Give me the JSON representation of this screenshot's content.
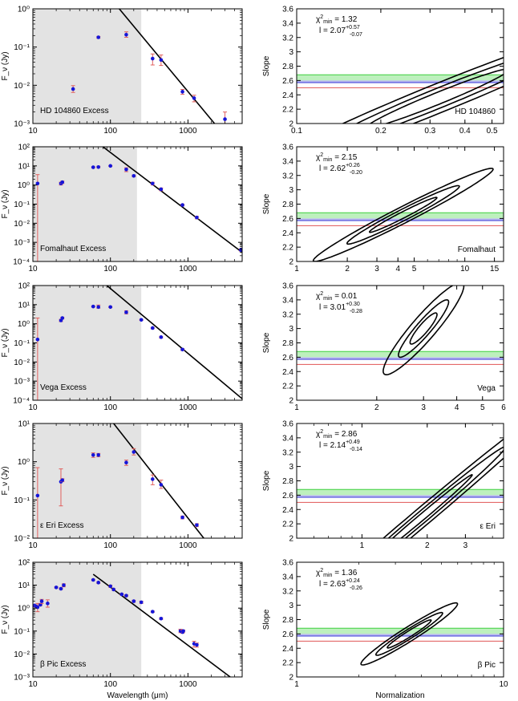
{
  "figure": {
    "left_ylabel": "F_ν (Jy)",
    "left_xlabel": "Wavelength (μm)",
    "right_ylabel": "Slope",
    "right_xlabel": "Normalization"
  },
  "chart_data": [
    {
      "type": "scatter",
      "panel": "sed",
      "label": "HD 104860 Excess",
      "xlog": true,
      "ylog": true,
      "xlim": [
        10,
        5000
      ],
      "ylim": [
        0.001,
        1
      ],
      "xticks": [
        10,
        100,
        1000
      ],
      "xtick_labels": [
        "10",
        "100",
        "1000"
      ],
      "yticks": [
        0.001,
        0.01,
        0.1,
        1
      ],
      "ytick_labels": [
        "10⁻³",
        "10⁻²",
        "10⁻¹",
        "10⁰"
      ],
      "shade_xmax": 250,
      "fit_line": [
        [
          130,
          1.0
        ],
        [
          2200,
          0.001
        ]
      ],
      "points": [
        {
          "x": 33,
          "y": 0.008,
          "err": [
            0.0065,
            0.0098
          ]
        },
        {
          "x": 70,
          "y": 0.18,
          "err": [
            0.17,
            0.19
          ]
        },
        {
          "x": 160,
          "y": 0.21,
          "err": [
            0.18,
            0.25
          ]
        },
        {
          "x": 350,
          "y": 0.05,
          "err": [
            0.034,
            0.066
          ]
        },
        {
          "x": 450,
          "y": 0.046,
          "err": [
            0.033,
            0.062
          ]
        },
        {
          "x": 850,
          "y": 0.0068,
          "err": [
            0.0058,
            0.0078
          ]
        },
        {
          "x": 1200,
          "y": 0.0046,
          "err": [
            0.0037,
            0.0055
          ]
        },
        {
          "x": 3000,
          "y": 0.0013,
          "err": [
            0.001,
            0.002
          ]
        }
      ]
    },
    {
      "type": "contour",
      "panel": "fit",
      "label": "HD 104860",
      "chi2": "1.32",
      "l_value": "2.07",
      "l_plus": "+0.57",
      "l_minus": "-0.07",
      "xlog": true,
      "xlim": [
        0.1,
        0.55
      ],
      "ylim": [
        2,
        3.6
      ],
      "xticks": [
        0.1,
        0.2,
        0.3,
        0.4,
        0.5
      ],
      "xtick_labels": [
        "0.1",
        "0.2",
        "0.3",
        "0.4",
        "0.5"
      ],
      "yticks": [
        2,
        2.2,
        2.4,
        2.6,
        2.8,
        3,
        3.2,
        3.4,
        3.6
      ],
      "ytick_labels": [
        "2",
        "2.2",
        "2.4",
        "2.6",
        "2.8",
        "3",
        "3.2",
        "3.4",
        "3.6"
      ],
      "center": [
        0.32,
        2.35
      ],
      "axis_angle_deg": 22,
      "radii": [
        [
          0.55,
          0.09
        ],
        [
          0.9,
          0.15
        ],
        [
          1.4,
          0.22
        ]
      ],
      "bands": {
        "green": [
          2.6,
          2.68
        ],
        "blue": [
          2.57,
          2.6
        ],
        "red": 2.5
      }
    },
    {
      "type": "scatter",
      "panel": "sed",
      "label": "Fomalhaut Excess",
      "xlog": true,
      "ylog": true,
      "xlim": [
        10,
        5000
      ],
      "ylim": [
        0.0001,
        100
      ],
      "xticks": [
        10,
        100,
        1000
      ],
      "xtick_labels": [
        "10",
        "100",
        "1000"
      ],
      "yticks": [
        0.0001,
        0.001,
        0.01,
        0.1,
        1,
        10,
        100
      ],
      "ytick_labels": [
        "10⁻⁴",
        "10⁻³",
        "10⁻²",
        "10⁻¹",
        "10⁰",
        "10¹",
        "10²"
      ],
      "shade_xmax": 220,
      "fit_line": [
        [
          80,
          100
        ],
        [
          5000,
          0.0003
        ]
      ],
      "points": [
        {
          "x": 11.5,
          "y": 1.2,
          "err": [
            0.0001,
            3.5
          ]
        },
        {
          "x": 23,
          "y": 1.2,
          "err": [
            1.0,
            1.4
          ]
        },
        {
          "x": 24,
          "y": 1.4,
          "err": [
            1.2,
            1.6
          ]
        },
        {
          "x": 60,
          "y": 8.5,
          "err": [
            8,
            9
          ]
        },
        {
          "x": 70,
          "y": 8.7,
          "err": [
            8,
            9.5
          ]
        },
        {
          "x": 100,
          "y": 10,
          "err": [
            9.5,
            10.5
          ]
        },
        {
          "x": 160,
          "y": 6.5,
          "err": [
            5,
            8
          ]
        },
        {
          "x": 200,
          "y": 3,
          "err": [
            2.7,
            3.3
          ]
        },
        {
          "x": 350,
          "y": 1.2,
          "err": [
            1.0,
            1.4
          ]
        },
        {
          "x": 450,
          "y": 0.6,
          "err": [
            0.5,
            0.7
          ]
        },
        {
          "x": 850,
          "y": 0.09,
          "err": [
            0.08,
            0.1
          ]
        },
        {
          "x": 1300,
          "y": 0.02,
          "err": [
            0.017,
            0.023
          ]
        },
        {
          "x": 4800,
          "y": 0.0004,
          "err": [
            0.00035,
            0.00045
          ]
        }
      ]
    },
    {
      "type": "contour",
      "panel": "fit",
      "label": "Fomalhaut",
      "chi2": "2.15",
      "l_value": "2.62",
      "l_plus": "+0.26",
      "l_minus": "-0.20",
      "xlog": true,
      "xlim": [
        1,
        17
      ],
      "ylim": [
        2,
        3.6
      ],
      "xticks": [
        1,
        2,
        3,
        4,
        5,
        10,
        15
      ],
      "xtick_labels": [
        "1",
        "2",
        "3",
        "4",
        "5",
        "10",
        "15"
      ],
      "yticks": [
        2,
        2.2,
        2.4,
        2.6,
        2.8,
        3,
        3.2,
        3.4,
        3.6
      ],
      "ytick_labels": [
        "2",
        "2.2",
        "2.4",
        "2.6",
        "2.8",
        "3",
        "3.2",
        "3.4",
        "3.6"
      ],
      "center": [
        4.3,
        2.65
      ],
      "axis_angle_deg": 27,
      "radii": [
        [
          0.45,
          0.05
        ],
        [
          0.75,
          0.09
        ],
        [
          1.2,
          0.13
        ]
      ],
      "bands": {
        "green": [
          2.6,
          2.68
        ],
        "blue": [
          2.57,
          2.6
        ],
        "red": 2.5
      }
    },
    {
      "type": "scatter",
      "panel": "sed",
      "label": "Vega Excess",
      "xlog": true,
      "ylog": true,
      "xlim": [
        10,
        5000
      ],
      "ylim": [
        0.0001,
        100
      ],
      "xticks": [
        10,
        100,
        1000
      ],
      "xtick_labels": [
        "10",
        "100",
        "1000"
      ],
      "yticks": [
        0.0001,
        0.001,
        0.01,
        0.1,
        1,
        10,
        100
      ],
      "ytick_labels": [
        "10⁻⁴",
        "10⁻³",
        "10⁻²",
        "10⁻¹",
        "10⁰",
        "10¹",
        "10²"
      ],
      "shade_xmax": 250,
      "fit_line": [
        [
          90,
          100
        ],
        [
          5000,
          0.00012
        ]
      ],
      "points": [
        {
          "x": 11.5,
          "y": 0.15,
          "err": [
            0.0001,
            2
          ]
        },
        {
          "x": 23,
          "y": 1.5,
          "err": [
            1.3,
            1.7
          ]
        },
        {
          "x": 24,
          "y": 2,
          "err": [
            1.8,
            2.2
          ]
        },
        {
          "x": 60,
          "y": 8,
          "err": [
            7.5,
            8.5
          ]
        },
        {
          "x": 70,
          "y": 7.5,
          "err": [
            6.5,
            9.5
          ]
        },
        {
          "x": 100,
          "y": 7.5,
          "err": [
            7,
            8
          ]
        },
        {
          "x": 160,
          "y": 4,
          "err": [
            3.3,
            4.8
          ]
        },
        {
          "x": 250,
          "y": 1.6,
          "err": [
            1.5,
            1.7
          ]
        },
        {
          "x": 350,
          "y": 0.6,
          "err": [
            0.55,
            0.65
          ]
        },
        {
          "x": 450,
          "y": 0.2,
          "err": [
            0.18,
            0.22
          ]
        },
        {
          "x": 850,
          "y": 0.045,
          "err": [
            0.04,
            0.05
          ]
        }
      ]
    },
    {
      "type": "contour",
      "panel": "fit",
      "label": "Vega",
      "chi2": "0.01",
      "l_value": "3.01",
      "l_plus": "+0.30",
      "l_minus": "-0.28",
      "xlog": true,
      "xlim": [
        1,
        6
      ],
      "ylim": [
        2,
        3.6
      ],
      "xticks": [
        1,
        2,
        3,
        4,
        5,
        6
      ],
      "xtick_labels": [
        "1",
        "2",
        "3",
        "4",
        "5",
        "6"
      ],
      "yticks": [
        2,
        2.2,
        2.4,
        2.6,
        2.8,
        3,
        3.2,
        3.4,
        3.6
      ],
      "ytick_labels": [
        "2",
        "2.2",
        "2.4",
        "2.6",
        "2.8",
        "3",
        "3.2",
        "3.4",
        "3.6"
      ],
      "center": [
        3.0,
        3.0
      ],
      "axis_angle_deg": 48,
      "radii": [
        [
          0.15,
          0.1
        ],
        [
          0.28,
          0.16
        ],
        [
          0.45,
          0.26
        ]
      ],
      "bands": {
        "green": [
          2.6,
          2.68
        ],
        "blue": [
          2.57,
          2.6
        ],
        "red": 2.5
      }
    },
    {
      "type": "scatter",
      "panel": "sed",
      "label": "ε Eri Excess",
      "xlog": true,
      "ylog": true,
      "xlim": [
        10,
        5000
      ],
      "ylim": [
        0.01,
        10
      ],
      "xticks": [
        10,
        100,
        1000
      ],
      "xtick_labels": [
        "10",
        "100",
        "1000"
      ],
      "yticks": [
        0.01,
        0.1,
        1,
        10
      ],
      "ytick_labels": [
        "10⁻²",
        "10⁻¹",
        "10⁰",
        "10¹"
      ],
      "shade_xmax": 250,
      "fit_line": [
        [
          110,
          10
        ],
        [
          1600,
          0.01
        ]
      ],
      "points": [
        {
          "x": 11.5,
          "y": 0.13,
          "err": [
            0.01,
            0.7
          ]
        },
        {
          "x": 23,
          "y": 0.3,
          "err": [
            0.07,
            0.65
          ]
        },
        {
          "x": 24,
          "y": 0.33,
          "err": [
            0.3,
            0.36
          ]
        },
        {
          "x": 60,
          "y": 1.5,
          "err": [
            1.3,
            1.7
          ]
        },
        {
          "x": 70,
          "y": 1.5,
          "err": [
            1.35,
            1.65
          ]
        },
        {
          "x": 160,
          "y": 0.95,
          "err": [
            0.8,
            1.1
          ]
        },
        {
          "x": 200,
          "y": 1.8,
          "err": [
            1.5,
            2.2
          ]
        },
        {
          "x": 350,
          "y": 0.35,
          "err": [
            0.25,
            0.45
          ]
        },
        {
          "x": 450,
          "y": 0.25,
          "err": [
            0.2,
            0.33
          ]
        },
        {
          "x": 850,
          "y": 0.035,
          "err": [
            0.032,
            0.038
          ]
        },
        {
          "x": 1300,
          "y": 0.022,
          "err": [
            0.02,
            0.024
          ]
        }
      ]
    },
    {
      "type": "contour",
      "panel": "fit",
      "label": "ε Eri",
      "chi2": "2.86",
      "l_value": "2.14",
      "l_plus": "+0.49",
      "l_minus": "-0.14",
      "xlog": true,
      "xlim": [
        0.5,
        4.5
      ],
      "ylim": [
        2,
        3.6
      ],
      "xticks": [
        1,
        2,
        3
      ],
      "xtick_labels": [
        "1",
        "2",
        "3"
      ],
      "yticks": [
        2,
        2.2,
        2.4,
        2.6,
        2.8,
        3,
        3.2,
        3.4,
        3.6
      ],
      "ytick_labels": [
        "2",
        "2.2",
        "2.4",
        "2.6",
        "2.8",
        "3",
        "3.2",
        "3.4",
        "3.6"
      ],
      "center": [
        1.9,
        2.3
      ],
      "axis_angle_deg": 40,
      "radii": [
        [
          0.6,
          0.06
        ],
        [
          1.0,
          0.11
        ],
        [
          1.7,
          0.17
        ]
      ],
      "bands": {
        "green": [
          2.6,
          2.68
        ],
        "blue": [
          2.57,
          2.6
        ],
        "red": 2.5
      }
    },
    {
      "type": "scatter",
      "panel": "sed",
      "label": "β Pic Excess",
      "xlog": true,
      "ylog": true,
      "xlim": [
        10,
        5000
      ],
      "ylim": [
        0.001,
        100
      ],
      "xticks": [
        10,
        100,
        1000
      ],
      "xtick_labels": [
        "10",
        "100",
        "1000"
      ],
      "yticks": [
        0.001,
        0.01,
        0.1,
        1,
        10,
        100
      ],
      "ytick_labels": [
        "10⁻³",
        "10⁻²",
        "10⁻¹",
        "10⁰",
        "10¹",
        "10²"
      ],
      "shade_xmax": 250,
      "fit_line": [
        [
          60,
          30
        ],
        [
          3500,
          0.001
        ]
      ],
      "points": [
        {
          "x": 10.5,
          "y": 1.3,
          "err": [
            1.2,
            1.4
          ]
        },
        {
          "x": 11,
          "y": 1.2,
          "err": [
            1.1,
            1.3
          ]
        },
        {
          "x": 11.5,
          "y": 1.1,
          "err": [
            0.7,
            1.6
          ]
        },
        {
          "x": 12.5,
          "y": 1.4,
          "err": [
            1.3,
            1.5
          ]
        },
        {
          "x": 13,
          "y": 2,
          "err": [
            1.6,
            2.4
          ]
        },
        {
          "x": 15.5,
          "y": 1.6,
          "err": [
            1.1,
            2.3
          ]
        },
        {
          "x": 20,
          "y": 8,
          "err": [
            7.5,
            8.5
          ]
        },
        {
          "x": 23,
          "y": 7,
          "err": [
            6.5,
            7.5
          ]
        },
        {
          "x": 25,
          "y": 10,
          "err": [
            8.5,
            11.5
          ]
        },
        {
          "x": 60,
          "y": 17,
          "err": [
            16,
            18
          ]
        },
        {
          "x": 70,
          "y": 13,
          "err": [
            12,
            14
          ]
        },
        {
          "x": 100,
          "y": 9,
          "err": [
            8,
            10
          ]
        },
        {
          "x": 110,
          "y": 6.5,
          "err": [
            6,
            7
          ]
        },
        {
          "x": 140,
          "y": 4,
          "err": [
            3.7,
            4.3
          ]
        },
        {
          "x": 160,
          "y": 3.5,
          "err": [
            3.2,
            3.8
          ]
        },
        {
          "x": 200,
          "y": 2,
          "err": [
            1.8,
            2.2
          ]
        },
        {
          "x": 250,
          "y": 1.8,
          "err": [
            1.6,
            2
          ]
        },
        {
          "x": 350,
          "y": 0.7,
          "err": [
            0.65,
            0.75
          ]
        },
        {
          "x": 450,
          "y": 0.35,
          "err": [
            0.32,
            0.38
          ]
        },
        {
          "x": 800,
          "y": 0.1,
          "err": [
            0.085,
            0.12
          ]
        },
        {
          "x": 850,
          "y": 0.09,
          "err": [
            0.08,
            0.11
          ]
        },
        {
          "x": 870,
          "y": 0.1,
          "err": [
            0.09,
            0.11
          ]
        },
        {
          "x": 1200,
          "y": 0.028,
          "err": [
            0.02,
            0.036
          ]
        },
        {
          "x": 1300,
          "y": 0.025,
          "err": [
            0.02,
            0.03
          ]
        }
      ]
    },
    {
      "type": "contour",
      "panel": "fit",
      "label": "β Pic",
      "chi2": "1.36",
      "l_value": "2.63",
      "l_plus": "+0.24",
      "l_minus": "-0.26",
      "xlog": true,
      "xlim": [
        1,
        10
      ],
      "ylim": [
        2,
        3.6
      ],
      "xticks": [
        1,
        10
      ],
      "xtick_labels": [
        "1",
        "10"
      ],
      "yticks": [
        2,
        2.2,
        2.4,
        2.6,
        2.8,
        3,
        3.2,
        3.4,
        3.6
      ],
      "ytick_labels": [
        "2",
        "2.2",
        "2.4",
        "2.6",
        "2.8",
        "3",
        "3.2",
        "3.4",
        "3.6"
      ],
      "center": [
        3.5,
        2.6
      ],
      "axis_angle_deg": 32,
      "radii": [
        [
          0.25,
          0.05
        ],
        [
          0.38,
          0.08
        ],
        [
          0.55,
          0.12
        ]
      ],
      "bands": {
        "green": [
          2.6,
          2.68
        ],
        "blue": [
          2.57,
          2.6
        ],
        "red": 2.5
      }
    }
  ]
}
